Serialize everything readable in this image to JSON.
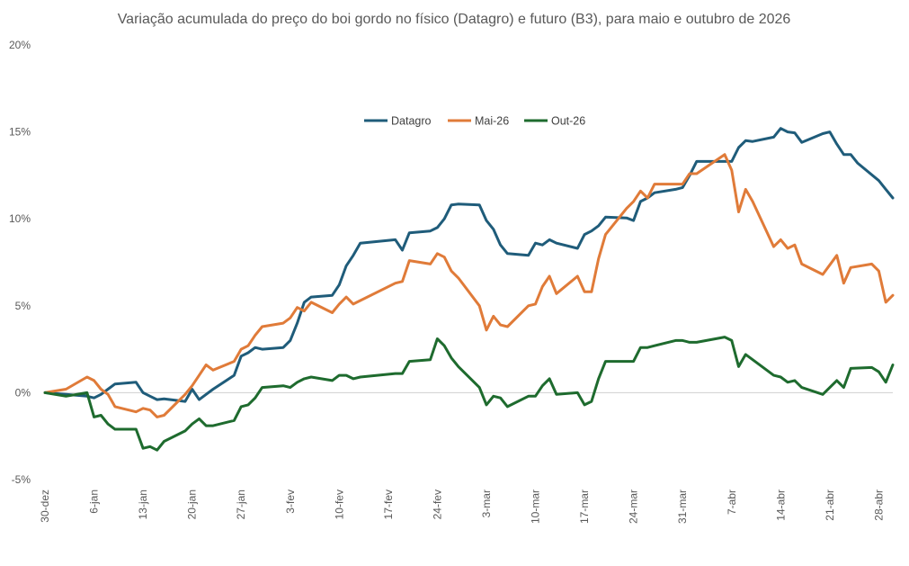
{
  "chart_data": {
    "type": "line",
    "title": "Variação acumulada do preço do boi gordo no físico (Datagro) e futuro (B3), para maio e outubro de 2026",
    "xlabel": "",
    "ylabel": "",
    "ylim": [
      -5,
      20
    ],
    "yticks": [
      {
        "value": -5,
        "label": "-5%"
      },
      {
        "value": 0,
        "label": "0%"
      },
      {
        "value": 5,
        "label": "5%"
      },
      {
        "value": 10,
        "label": "10%"
      },
      {
        "value": 15,
        "label": "15%"
      },
      {
        "value": 20,
        "label": "20%"
      }
    ],
    "xrange": [
      "2025-12-30",
      "2026-04-30"
    ],
    "xticks": [
      {
        "date": "2025-12-30",
        "label": "30-dez"
      },
      {
        "date": "2026-01-06",
        "label": "6-jan"
      },
      {
        "date": "2026-01-13",
        "label": "13-jan"
      },
      {
        "date": "2026-01-20",
        "label": "20-jan"
      },
      {
        "date": "2026-01-27",
        "label": "27-jan"
      },
      {
        "date": "2026-02-03",
        "label": "3-fev"
      },
      {
        "date": "2026-02-10",
        "label": "10-fev"
      },
      {
        "date": "2026-02-17",
        "label": "17-fev"
      },
      {
        "date": "2026-02-24",
        "label": "24-fev"
      },
      {
        "date": "2026-03-03",
        "label": "3-mar"
      },
      {
        "date": "2026-03-10",
        "label": "10-mar"
      },
      {
        "date": "2026-03-17",
        "label": "17-mar"
      },
      {
        "date": "2026-03-24",
        "label": "24-mar"
      },
      {
        "date": "2026-03-31",
        "label": "31-mar"
      },
      {
        "date": "2026-04-07",
        "label": "7-abr"
      },
      {
        "date": "2026-04-14",
        "label": "14-abr"
      },
      {
        "date": "2026-04-21",
        "label": "21-abr"
      },
      {
        "date": "2026-04-28",
        "label": "28-abr"
      }
    ],
    "grid": "zero-line only",
    "legend": "top-center",
    "series": [
      {
        "name": "Datagro",
        "color": "#1F5C7A",
        "points": [
          [
            "2025-12-30",
            0.0
          ],
          [
            "2026-01-02",
            -0.1
          ],
          [
            "2026-01-05",
            -0.2
          ],
          [
            "2026-01-06",
            -0.3
          ],
          [
            "2026-01-07",
            -0.1
          ],
          [
            "2026-01-08",
            0.2
          ],
          [
            "2026-01-09",
            0.5
          ],
          [
            "2026-01-12",
            0.6
          ],
          [
            "2026-01-13",
            0.0
          ],
          [
            "2026-01-14",
            -0.2
          ],
          [
            "2026-01-15",
            -0.4
          ],
          [
            "2026-01-16",
            -0.35
          ],
          [
            "2026-01-19",
            -0.5
          ],
          [
            "2026-01-20",
            0.2
          ],
          [
            "2026-01-21",
            -0.4
          ],
          [
            "2026-01-22",
            -0.1
          ],
          [
            "2026-01-23",
            0.2
          ],
          [
            "2026-01-26",
            1.0
          ],
          [
            "2026-01-27",
            2.1
          ],
          [
            "2026-01-28",
            2.3
          ],
          [
            "2026-01-29",
            2.6
          ],
          [
            "2026-01-30",
            2.5
          ],
          [
            "2026-02-02",
            2.6
          ],
          [
            "2026-02-03",
            3.0
          ],
          [
            "2026-02-04",
            4.0
          ],
          [
            "2026-02-05",
            5.2
          ],
          [
            "2026-02-06",
            5.5
          ],
          [
            "2026-02-09",
            5.6
          ],
          [
            "2026-02-10",
            6.2
          ],
          [
            "2026-02-11",
            7.3
          ],
          [
            "2026-02-12",
            7.9
          ],
          [
            "2026-02-13",
            8.6
          ],
          [
            "2026-02-18",
            8.8
          ],
          [
            "2026-02-19",
            8.2
          ],
          [
            "2026-02-20",
            9.2
          ],
          [
            "2026-02-23",
            9.3
          ],
          [
            "2026-02-24",
            9.5
          ],
          [
            "2026-02-25",
            10.0
          ],
          [
            "2026-02-26",
            10.8
          ],
          [
            "2026-02-27",
            10.85
          ],
          [
            "2026-03-02",
            10.8
          ],
          [
            "2026-03-03",
            9.9
          ],
          [
            "2026-03-04",
            9.4
          ],
          [
            "2026-03-05",
            8.5
          ],
          [
            "2026-03-06",
            8.0
          ],
          [
            "2026-03-09",
            7.9
          ],
          [
            "2026-03-10",
            8.6
          ],
          [
            "2026-03-11",
            8.5
          ],
          [
            "2026-03-12",
            8.8
          ],
          [
            "2026-03-13",
            8.6
          ],
          [
            "2026-03-16",
            8.3
          ],
          [
            "2026-03-17",
            9.1
          ],
          [
            "2026-03-18",
            9.3
          ],
          [
            "2026-03-19",
            9.6
          ],
          [
            "2026-03-20",
            10.1
          ],
          [
            "2026-03-23",
            10.05
          ],
          [
            "2026-03-24",
            9.9
          ],
          [
            "2026-03-25",
            11.0
          ],
          [
            "2026-03-26",
            11.2
          ],
          [
            "2026-03-27",
            11.5
          ],
          [
            "2026-03-30",
            11.7
          ],
          [
            "2026-03-31",
            11.8
          ],
          [
            "2026-04-01",
            12.5
          ],
          [
            "2026-04-02",
            13.3
          ],
          [
            "2026-04-06",
            13.3
          ],
          [
            "2026-04-07",
            13.3
          ],
          [
            "2026-04-08",
            14.1
          ],
          [
            "2026-04-09",
            14.5
          ],
          [
            "2026-04-10",
            14.45
          ],
          [
            "2026-04-13",
            14.7
          ],
          [
            "2026-04-14",
            15.2
          ],
          [
            "2026-04-15",
            15.0
          ],
          [
            "2026-04-16",
            14.95
          ],
          [
            "2026-04-17",
            14.4
          ],
          [
            "2026-04-20",
            14.9
          ],
          [
            "2026-04-21",
            15.0
          ],
          [
            "2026-04-22",
            14.3
          ],
          [
            "2026-04-23",
            13.7
          ],
          [
            "2026-04-24",
            13.7
          ],
          [
            "2026-04-25",
            13.2
          ],
          [
            "2026-04-28",
            12.2
          ],
          [
            "2026-04-29",
            11.7
          ],
          [
            "2026-04-30",
            11.2
          ]
        ]
      },
      {
        "name": "Mai-26",
        "color": "#E07B39",
        "points": [
          [
            "2025-12-30",
            0.0
          ],
          [
            "2026-01-02",
            0.2
          ],
          [
            "2026-01-05",
            0.9
          ],
          [
            "2026-01-06",
            0.7
          ],
          [
            "2026-01-07",
            0.2
          ],
          [
            "2026-01-08",
            -0.1
          ],
          [
            "2026-01-09",
            -0.8
          ],
          [
            "2026-01-12",
            -1.1
          ],
          [
            "2026-01-13",
            -0.9
          ],
          [
            "2026-01-14",
            -1.0
          ],
          [
            "2026-01-15",
            -1.4
          ],
          [
            "2026-01-16",
            -1.3
          ],
          [
            "2026-01-19",
            -0.1
          ],
          [
            "2026-01-20",
            0.4
          ],
          [
            "2026-01-21",
            1.0
          ],
          [
            "2026-01-22",
            1.6
          ],
          [
            "2026-01-23",
            1.3
          ],
          [
            "2026-01-26",
            1.8
          ],
          [
            "2026-01-27",
            2.5
          ],
          [
            "2026-01-28",
            2.7
          ],
          [
            "2026-01-29",
            3.3
          ],
          [
            "2026-01-30",
            3.8
          ],
          [
            "2026-02-02",
            4.0
          ],
          [
            "2026-02-03",
            4.3
          ],
          [
            "2026-02-04",
            4.9
          ],
          [
            "2026-02-05",
            4.7
          ],
          [
            "2026-02-06",
            5.2
          ],
          [
            "2026-02-09",
            4.6
          ],
          [
            "2026-02-10",
            5.1
          ],
          [
            "2026-02-11",
            5.5
          ],
          [
            "2026-02-12",
            5.1
          ],
          [
            "2026-02-18",
            6.3
          ],
          [
            "2026-02-19",
            6.4
          ],
          [
            "2026-02-20",
            7.6
          ],
          [
            "2026-02-23",
            7.4
          ],
          [
            "2026-02-24",
            8.0
          ],
          [
            "2026-02-25",
            7.8
          ],
          [
            "2026-02-26",
            7.0
          ],
          [
            "2026-02-27",
            6.6
          ],
          [
            "2026-03-02",
            5.0
          ],
          [
            "2026-03-03",
            3.6
          ],
          [
            "2026-03-04",
            4.4
          ],
          [
            "2026-03-05",
            3.9
          ],
          [
            "2026-03-06",
            3.8
          ],
          [
            "2026-03-09",
            5.0
          ],
          [
            "2026-03-10",
            5.1
          ],
          [
            "2026-03-11",
            6.1
          ],
          [
            "2026-03-12",
            6.7
          ],
          [
            "2026-03-13",
            5.7
          ],
          [
            "2026-03-16",
            6.7
          ],
          [
            "2026-03-17",
            5.8
          ],
          [
            "2026-03-18",
            5.8
          ],
          [
            "2026-03-19",
            7.7
          ],
          [
            "2026-03-20",
            9.1
          ],
          [
            "2026-03-23",
            10.6
          ],
          [
            "2026-03-24",
            11.0
          ],
          [
            "2026-03-25",
            11.6
          ],
          [
            "2026-03-26",
            11.2
          ],
          [
            "2026-03-27",
            12.0
          ],
          [
            "2026-03-30",
            12.0
          ],
          [
            "2026-03-31",
            12.0
          ],
          [
            "2026-04-01",
            12.6
          ],
          [
            "2026-04-02",
            12.6
          ],
          [
            "2026-04-06",
            13.7
          ],
          [
            "2026-04-07",
            12.8
          ],
          [
            "2026-04-08",
            10.4
          ],
          [
            "2026-04-09",
            11.7
          ],
          [
            "2026-04-10",
            11.0
          ],
          [
            "2026-04-13",
            8.4
          ],
          [
            "2026-04-14",
            8.8
          ],
          [
            "2026-04-15",
            8.3
          ],
          [
            "2026-04-16",
            8.5
          ],
          [
            "2026-04-17",
            7.4
          ],
          [
            "2026-04-20",
            6.8
          ],
          [
            "2026-04-22",
            7.9
          ],
          [
            "2026-04-23",
            6.3
          ],
          [
            "2026-04-24",
            7.2
          ],
          [
            "2026-04-27",
            7.4
          ],
          [
            "2026-04-28",
            7.0
          ],
          [
            "2026-04-29",
            5.2
          ],
          [
            "2026-04-30",
            5.6
          ]
        ]
      },
      {
        "name": "Out-26",
        "color": "#1E6B2E",
        "points": [
          [
            "2025-12-30",
            0.0
          ],
          [
            "2026-01-02",
            -0.2
          ],
          [
            "2026-01-05",
            0.0
          ],
          [
            "2026-01-06",
            -1.4
          ],
          [
            "2026-01-07",
            -1.3
          ],
          [
            "2026-01-08",
            -1.8
          ],
          [
            "2026-01-09",
            -2.1
          ],
          [
            "2026-01-12",
            -2.1
          ],
          [
            "2026-01-13",
            -3.2
          ],
          [
            "2026-01-14",
            -3.1
          ],
          [
            "2026-01-15",
            -3.3
          ],
          [
            "2026-01-16",
            -2.8
          ],
          [
            "2026-01-19",
            -2.2
          ],
          [
            "2026-01-20",
            -1.8
          ],
          [
            "2026-01-21",
            -1.5
          ],
          [
            "2026-01-22",
            -1.9
          ],
          [
            "2026-01-23",
            -1.9
          ],
          [
            "2026-01-26",
            -1.6
          ],
          [
            "2026-01-27",
            -0.8
          ],
          [
            "2026-01-28",
            -0.7
          ],
          [
            "2026-01-29",
            -0.3
          ],
          [
            "2026-01-30",
            0.3
          ],
          [
            "2026-02-02",
            0.4
          ],
          [
            "2026-02-03",
            0.3
          ],
          [
            "2026-02-04",
            0.6
          ],
          [
            "2026-02-05",
            0.8
          ],
          [
            "2026-02-06",
            0.9
          ],
          [
            "2026-02-09",
            0.7
          ],
          [
            "2026-02-10",
            1.0
          ],
          [
            "2026-02-11",
            1.0
          ],
          [
            "2026-02-12",
            0.8
          ],
          [
            "2026-02-13",
            0.9
          ],
          [
            "2026-02-18",
            1.1
          ],
          [
            "2026-02-19",
            1.1
          ],
          [
            "2026-02-20",
            1.8
          ],
          [
            "2026-02-23",
            1.9
          ],
          [
            "2026-02-24",
            3.1
          ],
          [
            "2026-02-25",
            2.7
          ],
          [
            "2026-02-26",
            2.0
          ],
          [
            "2026-02-27",
            1.5
          ],
          [
            "2026-03-02",
            0.3
          ],
          [
            "2026-03-03",
            -0.7
          ],
          [
            "2026-03-04",
            -0.2
          ],
          [
            "2026-03-05",
            -0.3
          ],
          [
            "2026-03-06",
            -0.8
          ],
          [
            "2026-03-09",
            -0.2
          ],
          [
            "2026-03-10",
            -0.2
          ],
          [
            "2026-03-11",
            0.4
          ],
          [
            "2026-03-12",
            0.8
          ],
          [
            "2026-03-13",
            -0.1
          ],
          [
            "2026-03-16",
            0.0
          ],
          [
            "2026-03-17",
            -0.7
          ],
          [
            "2026-03-18",
            -0.5
          ],
          [
            "2026-03-19",
            0.8
          ],
          [
            "2026-03-20",
            1.8
          ],
          [
            "2026-03-23",
            1.8
          ],
          [
            "2026-03-24",
            1.8
          ],
          [
            "2026-03-25",
            2.6
          ],
          [
            "2026-03-26",
            2.6
          ],
          [
            "2026-03-27",
            2.7
          ],
          [
            "2026-03-30",
            3.0
          ],
          [
            "2026-03-31",
            3.0
          ],
          [
            "2026-04-01",
            2.9
          ],
          [
            "2026-04-02",
            2.9
          ],
          [
            "2026-04-06",
            3.2
          ],
          [
            "2026-04-07",
            3.0
          ],
          [
            "2026-04-08",
            1.5
          ],
          [
            "2026-04-09",
            2.2
          ],
          [
            "2026-04-10",
            1.9
          ],
          [
            "2026-04-13",
            1.0
          ],
          [
            "2026-04-14",
            0.9
          ],
          [
            "2026-04-15",
            0.6
          ],
          [
            "2026-04-16",
            0.7
          ],
          [
            "2026-04-17",
            0.3
          ],
          [
            "2026-04-20",
            -0.1
          ],
          [
            "2026-04-22",
            0.7
          ],
          [
            "2026-04-23",
            0.3
          ],
          [
            "2026-04-24",
            1.4
          ],
          [
            "2026-04-27",
            1.45
          ],
          [
            "2026-04-28",
            1.2
          ],
          [
            "2026-04-29",
            0.6
          ],
          [
            "2026-04-30",
            1.6
          ]
        ]
      }
    ]
  }
}
